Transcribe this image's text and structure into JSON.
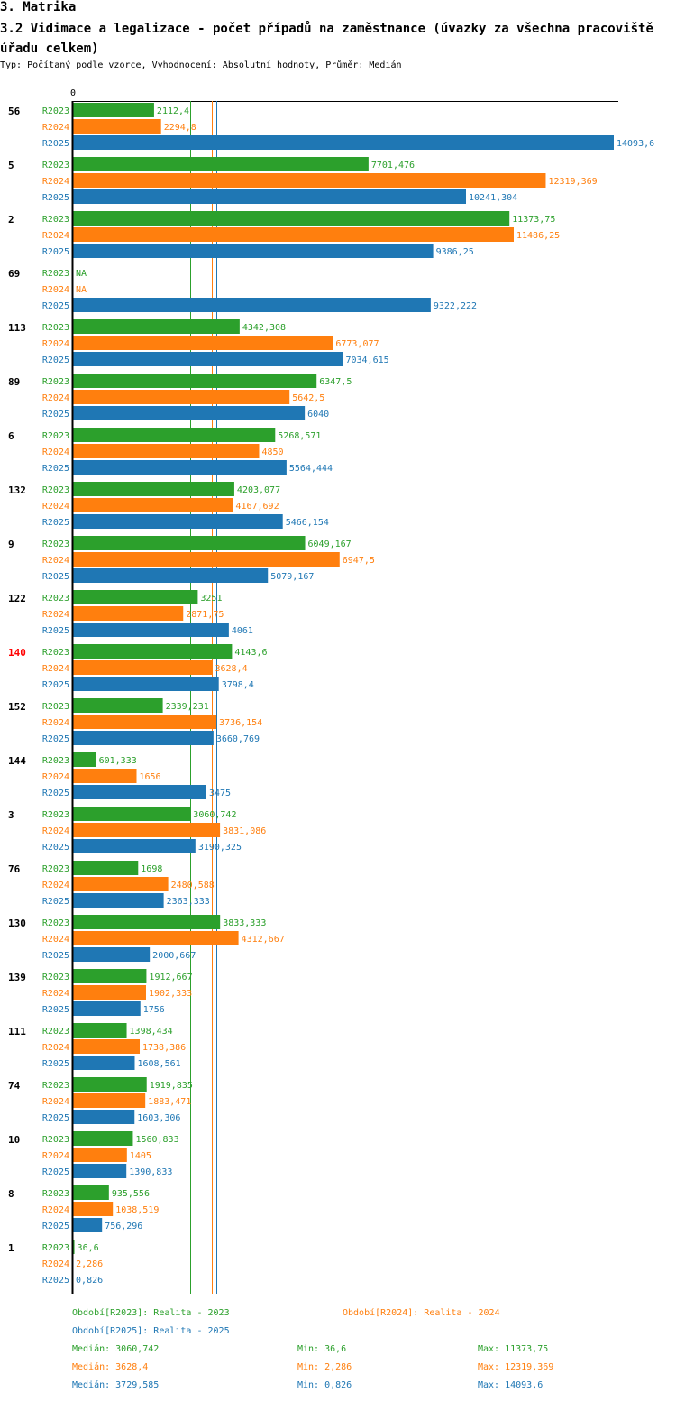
{
  "header": {
    "section": "3. Matrika",
    "title": "3.2 Vidimace a legalizace - počet případů na zaměstnance (úvazky za všechna pracoviště úřadu celkem)",
    "subtitle": "Typ: Počítaný podle vzorce, Vyhodnocení: Absolutní hodnoty, Průměr: Medián"
  },
  "colors": {
    "R2023": "#2ca02c",
    "R2024": "#ff7f0e",
    "R2025": "#1f77b4",
    "highlight": "#ff0000"
  },
  "chart_data": {
    "type": "bar",
    "orientation": "horizontal",
    "x_min": 0,
    "x_max": 14093.6,
    "axis_zero_label": "0",
    "highlight_category": "140",
    "categories": [
      "56",
      "5",
      "2",
      "69",
      "113",
      "89",
      "6",
      "132",
      "9",
      "122",
      "140",
      "152",
      "144",
      "3",
      "76",
      "130",
      "139",
      "111",
      "74",
      "10",
      "8",
      "1"
    ],
    "series": [
      {
        "name": "R2023",
        "values": [
          2112.4,
          7701.476,
          11373.75,
          null,
          4342.308,
          6347.5,
          5268.571,
          4203.077,
          6049.167,
          3251,
          4143.6,
          2339.231,
          601.333,
          3060.742,
          1698,
          3833.333,
          1912.667,
          1398.434,
          1919.835,
          1560.833,
          935.556,
          36.6
        ],
        "labels": [
          "2112,4",
          "7701,476",
          "11373,75",
          "NA",
          "4342,308",
          "6347,5",
          "5268,571",
          "4203,077",
          "6049,167",
          "3251",
          "4143,6",
          "2339,231",
          "601,333",
          "3060,742",
          "1698",
          "3833,333",
          "1912,667",
          "1398,434",
          "1919,835",
          "1560,833",
          "935,556",
          "36,6"
        ]
      },
      {
        "name": "R2024",
        "values": [
          2294.8,
          12319.369,
          11486.25,
          null,
          6773.077,
          5642.5,
          4850,
          4167.692,
          6947.5,
          2871.75,
          3628.4,
          3736.154,
          1656,
          3831.086,
          2480.588,
          4312.667,
          1902.333,
          1738.386,
          1883.471,
          1405,
          1038.519,
          2.286
        ],
        "labels": [
          "2294,8",
          "12319,369",
          "11486,25",
          "NA",
          "6773,077",
          "5642,5",
          "4850",
          "4167,692",
          "6947,5",
          "2871,75",
          "3628,4",
          "3736,154",
          "1656",
          "3831,086",
          "2480,588",
          "4312,667",
          "1902,333",
          "1738,386",
          "1883,471",
          "1405",
          "1038,519",
          "2,286"
        ]
      },
      {
        "name": "R2025",
        "values": [
          14093.6,
          10241.304,
          9386.25,
          9322.222,
          7034.615,
          6040,
          5564.444,
          5466.154,
          5079.167,
          4061,
          3798.4,
          3660.769,
          3475,
          3190.325,
          2363.333,
          2000.667,
          1756,
          1608.561,
          1603.306,
          1390.833,
          756.296,
          0.826
        ],
        "labels": [
          "14093,6",
          "10241,304",
          "9386,25",
          "9322,222",
          "7034,615",
          "6040",
          "5564,444",
          "5466,154",
          "5079,167",
          "4061",
          "3798,4",
          "3660,769",
          "3475",
          "3190,325",
          "2363,333",
          "2000,667",
          "1756",
          "1608,561",
          "1603,306",
          "1390,833",
          "756,296",
          "0,826"
        ]
      }
    ],
    "median_lines": {
      "R2023": 3060.742,
      "R2024": 3628.4,
      "R2025": 3729.585
    }
  },
  "legend": {
    "r2023": "Období[R2023]: Realita - 2023",
    "r2024": "Období[R2024]: Realita - 2024",
    "r2025": "Období[R2025]: Realita - 2025"
  },
  "stats": {
    "r2023": {
      "median": "Medián: 3060,742",
      "min": "Min: 36,6",
      "max": "Max: 11373,75"
    },
    "r2024": {
      "median": "Medián: 3628,4",
      "min": "Min: 2,286",
      "max": "Max: 12319,369"
    },
    "r2025": {
      "median": "Medián: 3729,585",
      "min": "Min: 0,826",
      "max": "Max: 14093,6"
    }
  }
}
